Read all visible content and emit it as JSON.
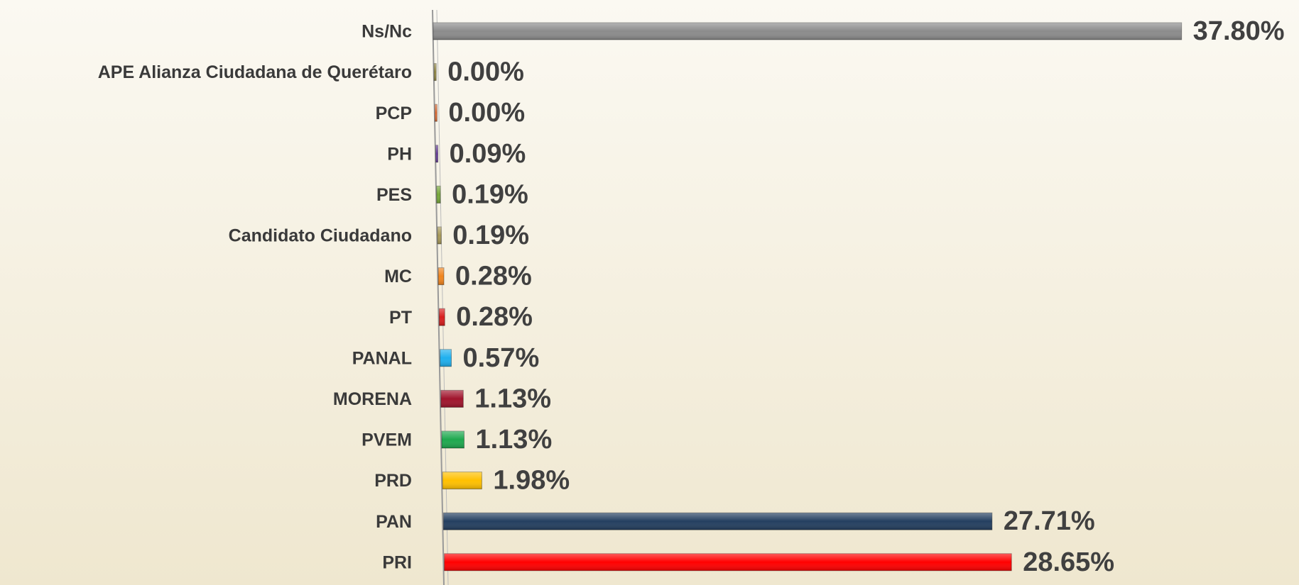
{
  "chart_data": {
    "type": "bar",
    "orientation": "horizontal",
    "categories": [
      "Ns/Nc",
      "APE Alianza Ciudadana de Querétaro",
      "PCP",
      "PH",
      "PES",
      "Candidato Ciudadano",
      "MC",
      "PT",
      "PANAL",
      "MORENA",
      "PVEM",
      "PRD",
      "PAN",
      "PRI"
    ],
    "values": [
      37.8,
      0.0,
      0.0,
      0.09,
      0.19,
      0.19,
      0.28,
      0.28,
      0.57,
      1.13,
      1.13,
      1.98,
      27.71,
      28.65
    ],
    "value_labels": [
      "37.80%",
      "0.00%",
      "0.00%",
      "0.09%",
      "0.19%",
      "0.19%",
      "0.28%",
      "0.28%",
      "0.57%",
      "1.13%",
      "1.13%",
      "1.98%",
      "27.71%",
      "28.65%"
    ],
    "colors": [
      "#8c8c8c",
      "#9a8f4a",
      "#e8743b",
      "#6b3fa0",
      "#78a83a",
      "#a89a5a",
      "#f0841e",
      "#d81e1e",
      "#1fb0ee",
      "#a0142c",
      "#1ea84e",
      "#ffc000",
      "#243f60",
      "#ff0000"
    ],
    "xlim": [
      0,
      40
    ]
  }
}
